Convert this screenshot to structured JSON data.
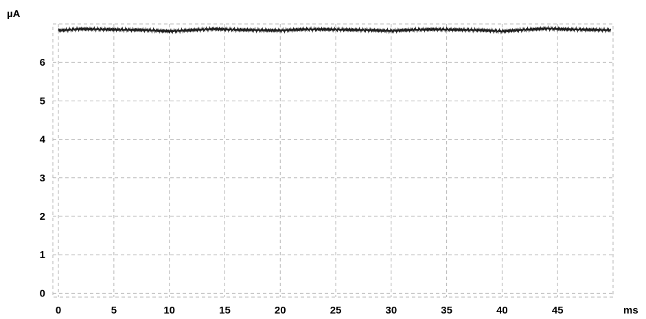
{
  "chart_data": {
    "type": "line",
    "title": "",
    "xlabel": "ms",
    "ylabel": "µA",
    "xlim": [
      -0.5,
      50
    ],
    "ylim": [
      -0.1,
      7.0
    ],
    "xticks": [
      0,
      5,
      10,
      15,
      20,
      25,
      30,
      35,
      40,
      45
    ],
    "yticks": [
      0,
      1,
      2,
      3,
      4,
      5,
      6
    ],
    "grid": true,
    "legend": "none",
    "line_color": "#1e1e1e",
    "grid_color": "#b4b4b4",
    "series": [
      {
        "x": [
          0,
          2,
          4,
          6,
          8,
          10,
          12,
          14,
          16,
          18,
          20,
          22,
          24,
          26,
          28,
          30,
          32,
          34,
          36,
          38,
          40,
          42,
          44,
          46,
          48,
          49.8
        ],
        "values": [
          6.83,
          6.87,
          6.86,
          6.85,
          6.84,
          6.81,
          6.84,
          6.87,
          6.85,
          6.84,
          6.83,
          6.86,
          6.86,
          6.85,
          6.84,
          6.82,
          6.85,
          6.86,
          6.85,
          6.84,
          6.81,
          6.85,
          6.88,
          6.86,
          6.85,
          6.84
        ]
      }
    ]
  }
}
